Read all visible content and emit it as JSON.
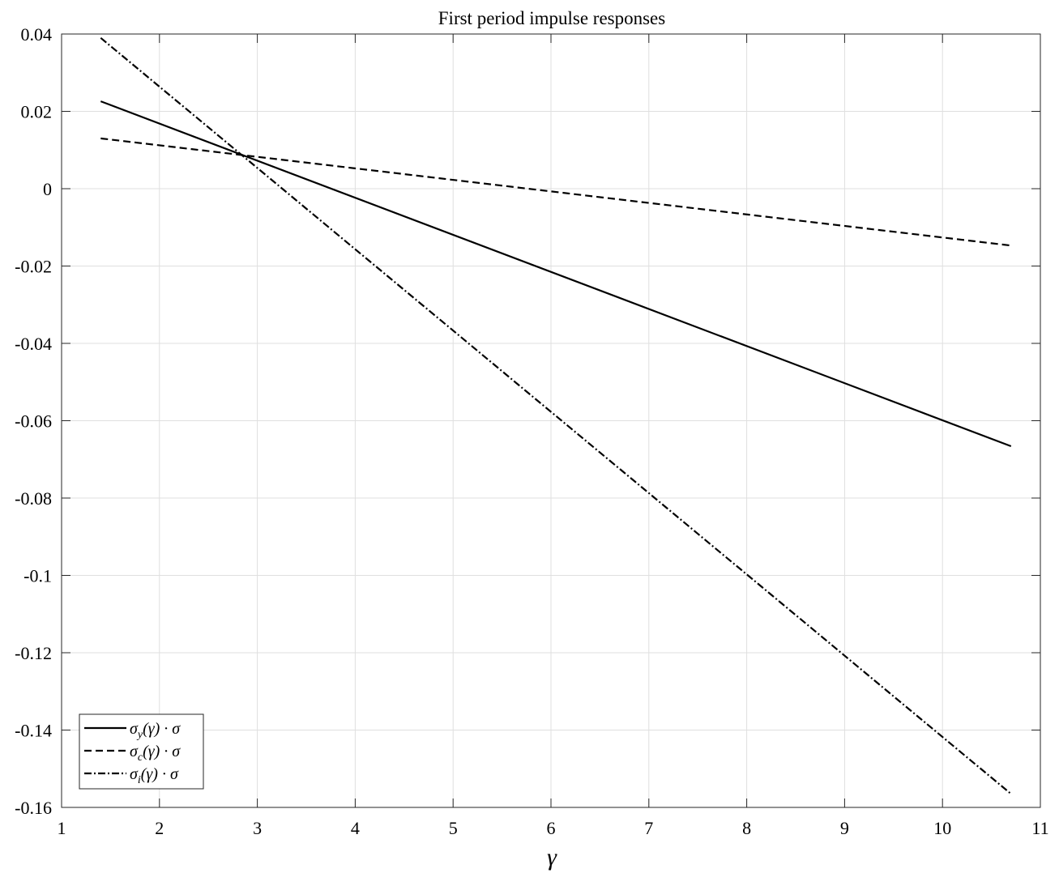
{
  "chart_data": {
    "type": "line",
    "title": "First period impulse responses",
    "xlabel": "γ",
    "ylabel": "",
    "xlim": [
      1,
      11
    ],
    "ylim": [
      -0.16,
      0.04
    ],
    "xticks": [
      1,
      2,
      3,
      4,
      5,
      6,
      7,
      8,
      9,
      10,
      11
    ],
    "xtick_labels": [
      "1",
      "2",
      "3",
      "4",
      "5",
      "6",
      "7",
      "8",
      "9",
      "10",
      "11"
    ],
    "yticks": [
      0.04,
      0.02,
      0,
      -0.02,
      -0.04,
      -0.06,
      -0.08,
      -0.1,
      -0.12,
      -0.14,
      -0.16
    ],
    "ytick_labels": [
      "0.04",
      "0.02",
      "0",
      "-0.02",
      "-0.04",
      "-0.06",
      "-0.08",
      "-0.1",
      "-0.12",
      "-0.14",
      "-0.16"
    ],
    "grid": true,
    "legend_position": "bottom-left",
    "x": [
      1.4,
      10.7
    ],
    "series": [
      {
        "name": "σy(γ) · σ",
        "base": "σ",
        "sub": "y",
        "rest": "(γ) · σ",
        "style": "solid",
        "values": [
          0.0226,
          -0.0666
        ]
      },
      {
        "name": "σc(γ) · σ",
        "base": "σ",
        "sub": "c",
        "rest": "(γ) · σ",
        "style": "dashed",
        "values": [
          0.013,
          -0.0147
        ]
      },
      {
        "name": "σi(γ) · σ",
        "base": "σ",
        "sub": "i",
        "rest": "(γ) · σ",
        "style": "dashdot",
        "values": [
          0.039,
          -0.1565
        ]
      }
    ],
    "colors": {
      "line": "#000000",
      "grid": "#dfdfdf",
      "axes": "#262626",
      "background": "#ffffff"
    }
  }
}
